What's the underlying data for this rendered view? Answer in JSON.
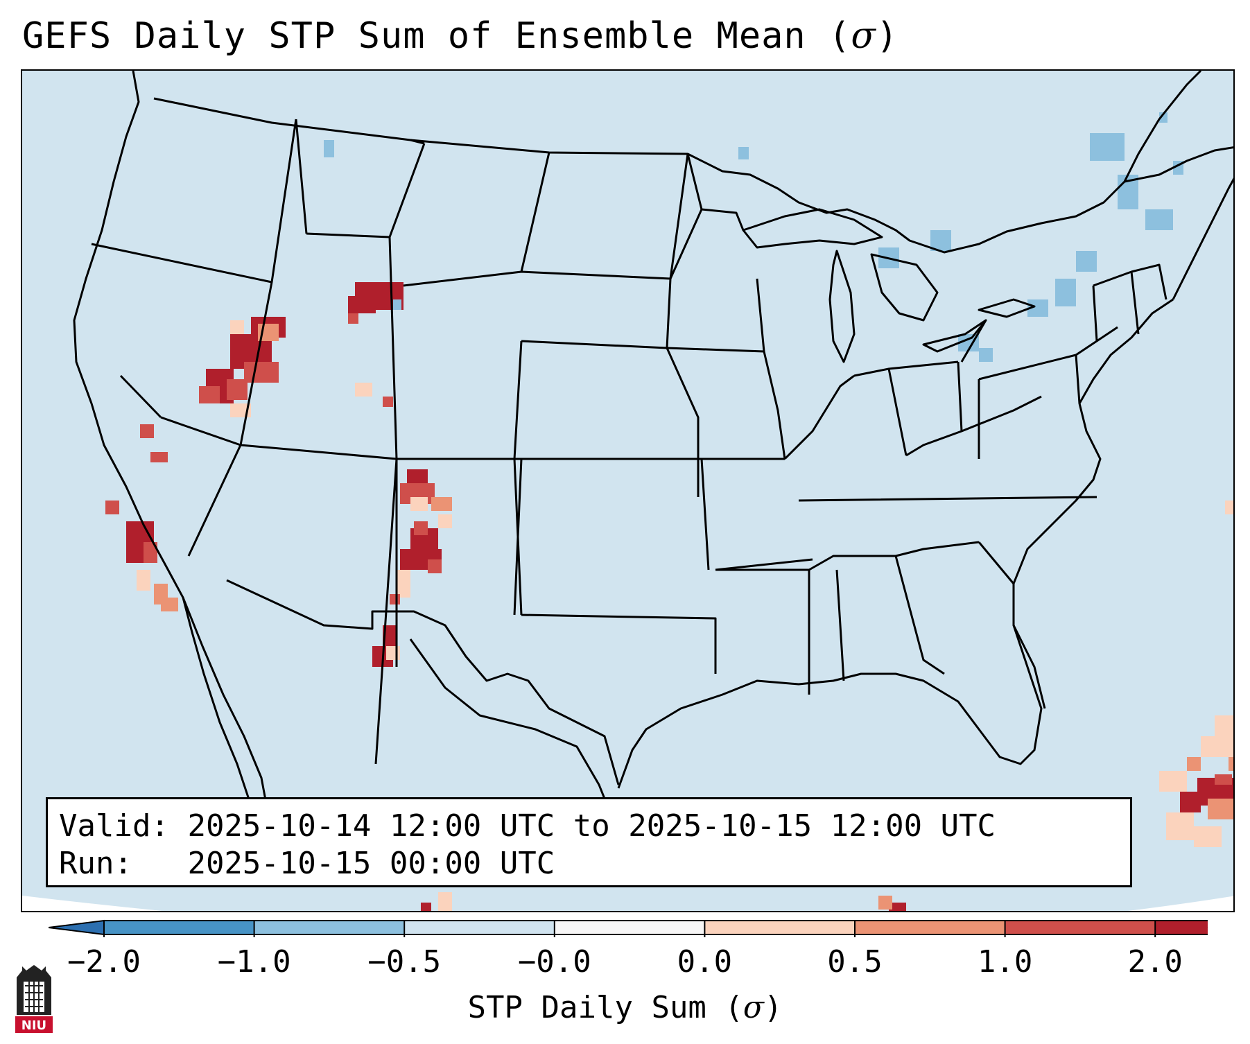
{
  "title": "GEFS Daily STP Sum of Ensemble Mean (",
  "title_symbol": "σ",
  "title_close": ")",
  "info": {
    "valid_label": "Valid:",
    "valid_value": "2025-10-14 12:00 UTC to 2025-10-15 12:00 UTC",
    "run_label": "Run:",
    "run_value": "2025-10-15 00:00 UTC"
  },
  "colorbar": {
    "ticks": [
      "−2.0",
      "−1.0",
      "−0.5",
      "−0.0",
      "0.0",
      "0.5",
      "1.0",
      "2.0"
    ],
    "label": "STP Daily Sum (",
    "label_symbol": "σ",
    "label_close": ")",
    "colors": [
      "#4793c5",
      "#8dc0de",
      "#d0e3ef",
      "#f7f6f6",
      "#fbd3bd",
      "#eb9374",
      "#cf4f4b",
      "#b01f2c"
    ],
    "extend_low_color": "#2c6fb0",
    "extend_high_color": "#a5142a"
  },
  "map": {
    "background_color": "#d1e4ef",
    "outside_color": "#ffffff",
    "line_color": "#000000"
  },
  "logo": {
    "text": "NIU",
    "color": "#c8102e"
  }
}
